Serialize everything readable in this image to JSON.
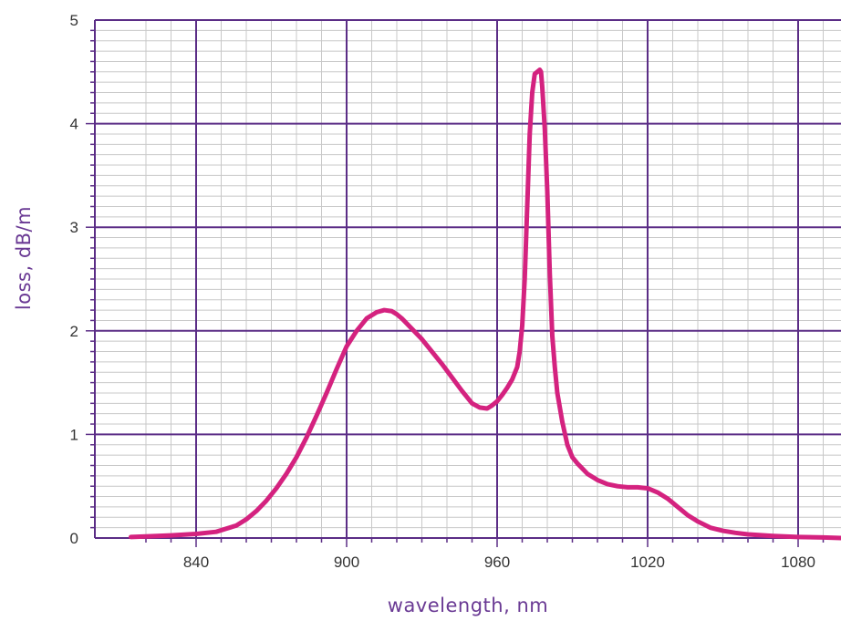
{
  "chart_data": {
    "type": "line",
    "title": "",
    "xlabel": "wavelength, nm",
    "ylabel": "loss, dB/m",
    "xlim": [
      810,
      1100
    ],
    "ylim": [
      0,
      5
    ],
    "x_ticks": [
      840,
      900,
      960,
      1020,
      1080
    ],
    "y_ticks": [
      0,
      1,
      2,
      3,
      4,
      5
    ],
    "grid": true,
    "colors": {
      "series": "#d4227f",
      "major_grid": "#5b2d86",
      "minor_grid": "#c8c8c8",
      "tick_label": "#333333",
      "axis_label": "#6a3a94"
    },
    "series": [
      {
        "x": [
          814,
          820,
          830,
          840,
          848,
          852,
          856,
          860,
          864,
          868,
          872,
          876,
          880,
          884,
          888,
          892,
          896,
          900,
          904,
          908,
          912,
          915,
          918,
          920,
          922,
          926,
          930,
          934,
          938,
          942,
          946,
          950,
          953,
          956,
          958,
          960,
          962,
          964,
          966,
          968,
          969,
          970,
          971,
          972,
          973,
          974,
          975,
          976,
          977,
          977.5,
          978,
          979,
          980,
          981,
          982,
          983,
          984,
          986,
          988,
          990,
          992,
          994,
          996,
          1000,
          1004,
          1008,
          1012,
          1016,
          1020,
          1024,
          1028,
          1032,
          1036,
          1040,
          1045,
          1050,
          1055,
          1060,
          1070,
          1080,
          1090,
          1100
        ],
        "y": [
          0.01,
          0.015,
          0.025,
          0.04,
          0.06,
          0.09,
          0.12,
          0.18,
          0.26,
          0.36,
          0.48,
          0.62,
          0.78,
          0.97,
          1.18,
          1.4,
          1.63,
          1.85,
          2.0,
          2.12,
          2.18,
          2.2,
          2.19,
          2.16,
          2.12,
          2.02,
          1.92,
          1.8,
          1.68,
          1.55,
          1.42,
          1.3,
          1.26,
          1.25,
          1.28,
          1.32,
          1.38,
          1.45,
          1.53,
          1.65,
          1.8,
          2.05,
          2.5,
          3.2,
          3.9,
          4.3,
          4.48,
          4.5,
          4.52,
          4.5,
          4.35,
          3.95,
          3.35,
          2.55,
          1.95,
          1.65,
          1.4,
          1.12,
          0.9,
          0.78,
          0.72,
          0.67,
          0.62,
          0.56,
          0.52,
          0.5,
          0.49,
          0.49,
          0.48,
          0.44,
          0.38,
          0.3,
          0.22,
          0.16,
          0.1,
          0.07,
          0.05,
          0.035,
          0.02,
          0.01,
          0.005,
          0.0
        ]
      }
    ]
  }
}
